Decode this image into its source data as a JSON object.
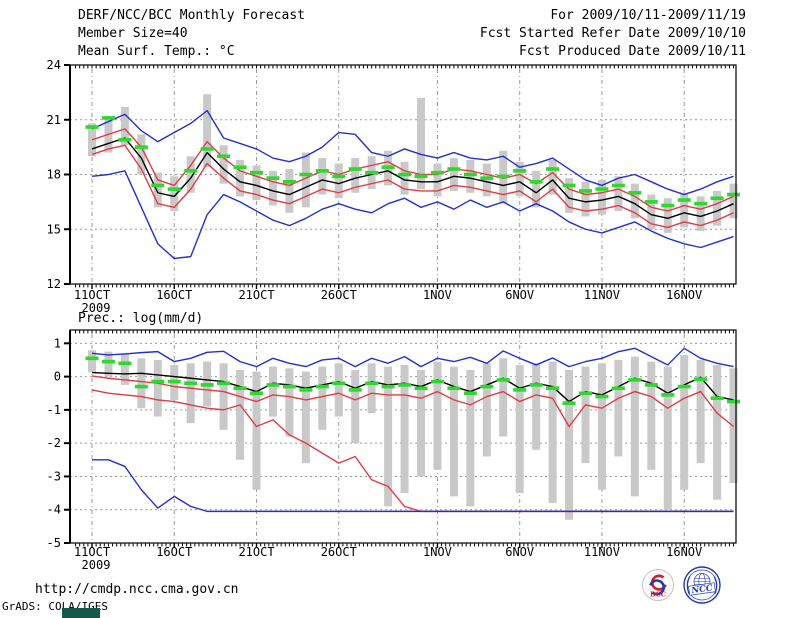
{
  "header": {
    "title": "DERF/NCC/BCC Monthly Forecast",
    "member_size": "Member Size=40",
    "for_range": "For 2009/10/11-2009/11/19",
    "fcst_started": "Fcst Started Refer Date 2009/10/10",
    "fcst_produced": "Fcst Produced Date 2009/10/11"
  },
  "footer": {
    "url": "http://cmdp.ncc.cma.gov.cn",
    "grads_credit": "GrADS: COLA/IGES",
    "logos": [
      {
        "name": "bcc-logo",
        "label": "BCC",
        "color": "#c3242c"
      },
      {
        "name": "ncc-logo",
        "label": "NCC",
        "color": "#2438b0"
      }
    ]
  },
  "colors": {
    "line_blue": "#2330cc",
    "line_red": "#e13c46",
    "line_black": "#000000",
    "green_dash": "#2ed82e",
    "spread_bar": "#c9c9c9",
    "gridline": "#9a9a9a",
    "frame": "#000000"
  },
  "chart_data": [
    {
      "type": "line",
      "title": "Mean Surf. Temp.: °C",
      "n_days": 40,
      "start_date": "11OCT2009",
      "x_tick_days": [
        0,
        5,
        10,
        15,
        21,
        26,
        31,
        36
      ],
      "x_tick_labels": [
        "11OCT",
        "16OCT",
        "21OCT",
        "26OCT",
        "1NOV",
        "6NOV",
        "11NOV",
        "16NOV"
      ],
      "x_sub_label": "2009",
      "ylim": [
        12,
        24
      ],
      "yticks": [
        24,
        21,
        18,
        15,
        12
      ],
      "ygrid": [
        21,
        18,
        15
      ],
      "series": [
        {
          "name": "upper-quartile",
          "color": "#e13c46",
          "values": [
            19.9,
            20.2,
            20.5,
            19.5,
            17.7,
            17.4,
            18.5,
            19.8,
            18.9,
            18.2,
            17.9,
            17.6,
            17.4,
            17.8,
            18.2,
            18.0,
            18.3,
            18.5,
            18.7,
            18.2,
            18.0,
            18.0,
            18.3,
            18.2,
            18.0,
            17.8,
            18.0,
            17.5,
            18.1,
            17.2,
            16.9,
            17.0,
            17.2,
            16.8,
            16.2,
            16.0,
            16.3,
            16.1,
            16.4,
            16.8
          ]
        },
        {
          "name": "lower-quartile",
          "color": "#e13c46",
          "values": [
            19.1,
            19.4,
            19.6,
            18.3,
            16.4,
            16.2,
            17.2,
            18.6,
            17.8,
            17.1,
            16.9,
            16.6,
            16.4,
            16.8,
            17.2,
            17.0,
            17.3,
            17.5,
            17.7,
            17.2,
            17.1,
            17.1,
            17.4,
            17.3,
            17.1,
            16.9,
            17.1,
            16.5,
            17.2,
            16.2,
            16.0,
            16.1,
            16.3,
            15.9,
            15.3,
            15.1,
            15.4,
            15.2,
            15.5,
            15.9
          ]
        },
        {
          "name": "ensemble-mean",
          "color": "#000000",
          "values": [
            19.4,
            19.7,
            20.0,
            18.9,
            17.0,
            16.8,
            17.8,
            19.2,
            18.3,
            17.6,
            17.4,
            17.1,
            16.9,
            17.3,
            17.7,
            17.5,
            17.8,
            18.0,
            18.2,
            17.7,
            17.6,
            17.6,
            17.9,
            17.8,
            17.6,
            17.4,
            17.6,
            17.0,
            17.7,
            16.7,
            16.5,
            16.6,
            16.8,
            16.4,
            15.8,
            15.6,
            15.9,
            15.7,
            16.0,
            16.4
          ]
        },
        {
          "name": "ensemble-max",
          "color": "#2330cc",
          "values": [
            20.5,
            20.9,
            21.3,
            20.4,
            19.8,
            20.3,
            20.8,
            21.5,
            20.0,
            19.7,
            19.4,
            18.9,
            18.7,
            19.0,
            19.5,
            20.3,
            20.2,
            19.2,
            19.0,
            19.4,
            19.1,
            18.9,
            19.2,
            18.9,
            18.8,
            19.0,
            18.4,
            18.6,
            18.9,
            18.3,
            17.7,
            17.4,
            17.8,
            18.0,
            17.6,
            17.2,
            16.9,
            17.2,
            17.6,
            17.9
          ]
        },
        {
          "name": "ensemble-min",
          "color": "#2330cc",
          "values": [
            17.9,
            18.0,
            18.2,
            16.2,
            14.2,
            13.4,
            13.5,
            15.8,
            16.9,
            16.5,
            16.0,
            15.5,
            15.2,
            15.6,
            16.1,
            16.4,
            16.1,
            15.9,
            16.4,
            16.7,
            16.2,
            16.5,
            16.1,
            16.6,
            16.2,
            16.5,
            16.0,
            16.4,
            16.0,
            15.4,
            15.0,
            14.8,
            15.1,
            15.4,
            14.9,
            14.5,
            14.2,
            14.0,
            14.3,
            14.6
          ]
        }
      ],
      "green_dashes": {
        "name": "climatology-mark",
        "color": "#2ed82e",
        "values": [
          20.6,
          21.1,
          19.9,
          19.5,
          17.4,
          17.2,
          18.2,
          19.4,
          19.0,
          18.4,
          18.1,
          17.8,
          17.6,
          18.0,
          18.2,
          17.9,
          18.3,
          18.1,
          18.4,
          18.0,
          17.9,
          18.1,
          18.3,
          18.0,
          17.8,
          17.9,
          18.2,
          17.6,
          18.3,
          17.4,
          17.1,
          17.2,
          17.4,
          17.0,
          16.5,
          16.3,
          16.6,
          16.4,
          16.7,
          16.9
        ]
      },
      "spread_bars": {
        "name": "ensemble-spread-bar",
        "color": "#c9c9c9",
        "low": [
          19.0,
          19.2,
          19.6,
          18.0,
          16.2,
          16.0,
          17.0,
          18.4,
          17.5,
          16.8,
          16.6,
          16.3,
          15.9,
          16.2,
          16.9,
          16.7,
          17.0,
          17.2,
          17.4,
          16.9,
          17.2,
          16.8,
          17.1,
          17.0,
          16.8,
          16.4,
          16.8,
          16.2,
          16.9,
          15.9,
          15.7,
          15.8,
          16.0,
          15.6,
          15.0,
          14.8,
          15.1,
          14.9,
          15.2,
          15.6
        ],
        "high": [
          20.8,
          21.0,
          21.7,
          20.2,
          18.1,
          17.9,
          19.0,
          22.4,
          19.6,
          18.8,
          18.5,
          18.2,
          18.3,
          19.2,
          18.9,
          18.6,
          18.9,
          19.0,
          19.3,
          18.7,
          22.2,
          18.6,
          18.9,
          18.8,
          18.6,
          19.3,
          18.7,
          18.2,
          18.8,
          17.8,
          17.6,
          17.7,
          17.9,
          17.5,
          16.9,
          16.7,
          17.0,
          16.8,
          17.1,
          17.5
        ]
      }
    },
    {
      "type": "line",
      "title": "Prec.: log(mm/d)",
      "n_days": 40,
      "start_date": "11OCT2009",
      "x_tick_days": [
        0,
        5,
        10,
        15,
        21,
        26,
        31,
        36
      ],
      "x_tick_labels": [
        "11OCT",
        "16OCT",
        "21OCT",
        "26OCT",
        "1NOV",
        "6NOV",
        "11NOV",
        "16NOV"
      ],
      "x_sub_label": "2009",
      "ylim": [
        -5,
        1.4
      ],
      "yticks": [
        1,
        0,
        -1,
        -2,
        -3,
        -4,
        -5
      ],
      "ygrid": [
        1,
        0,
        -1,
        -2,
        -3,
        -4
      ],
      "series": [
        {
          "name": "upper-quartile",
          "color": "#e13c46",
          "values": [
            0.02,
            -0.05,
            -0.1,
            -0.15,
            -0.2,
            -0.3,
            -0.35,
            -0.4,
            -0.45,
            -0.6,
            -0.75,
            -0.55,
            -0.6,
            -0.7,
            -0.6,
            -0.5,
            -0.7,
            -0.5,
            -0.55,
            -0.55,
            -0.65,
            -0.45,
            -0.7,
            -0.85,
            -0.6,
            -0.45,
            -0.75,
            -0.55,
            -0.65,
            -1.5,
            -0.85,
            -0.95,
            -0.65,
            -0.45,
            -0.6,
            -0.95,
            -0.65,
            -0.45,
            -1.1,
            -1.5
          ]
        },
        {
          "name": "lower-quartile",
          "color": "#e13c46",
          "values": [
            -0.4,
            -0.5,
            -0.55,
            -0.6,
            -0.7,
            -0.75,
            -0.85,
            -0.95,
            -1.0,
            -0.85,
            -1.5,
            -1.3,
            -1.75,
            -2.0,
            -2.3,
            -2.6,
            -2.4,
            -3.1,
            -3.3,
            -3.9,
            -4.05,
            -4.05,
            -4.05,
            -4.05,
            -4.05,
            -4.05,
            -4.05,
            -4.05,
            -4.05,
            -4.05,
            -4.05,
            -4.05,
            -4.05,
            -4.05,
            -4.05,
            -4.05,
            -4.05,
            -4.05,
            -4.05,
            -4.05
          ]
        },
        {
          "name": "ensemble-mean",
          "color": "#000000",
          "values": [
            0.12,
            0.1,
            0.08,
            0.1,
            0.05,
            0.0,
            -0.05,
            -0.1,
            -0.15,
            -0.3,
            -0.45,
            -0.2,
            -0.25,
            -0.35,
            -0.25,
            -0.15,
            -0.35,
            -0.15,
            -0.25,
            -0.2,
            -0.3,
            -0.1,
            -0.3,
            -0.45,
            -0.25,
            -0.05,
            -0.35,
            -0.2,
            -0.3,
            -0.75,
            -0.45,
            -0.55,
            -0.3,
            -0.05,
            -0.2,
            -0.5,
            -0.25,
            -0.02,
            -0.6,
            -0.7
          ]
        },
        {
          "name": "ensemble-max",
          "color": "#2330cc",
          "values": [
            0.7,
            0.65,
            0.68,
            0.72,
            0.75,
            0.45,
            0.55,
            0.73,
            0.76,
            0.45,
            0.3,
            0.55,
            0.4,
            0.3,
            0.5,
            0.55,
            0.3,
            0.55,
            0.4,
            0.6,
            0.3,
            0.55,
            0.45,
            0.58,
            0.4,
            0.77,
            0.55,
            0.35,
            0.56,
            0.3,
            0.45,
            0.55,
            0.75,
            0.85,
            0.6,
            0.35,
            0.85,
            0.55,
            0.4,
            0.3
          ]
        },
        {
          "name": "ensemble-min",
          "color": "#2330cc",
          "values": [
            -2.5,
            -2.5,
            -2.7,
            -3.4,
            -3.95,
            -3.6,
            -3.9,
            -4.05,
            -4.05,
            -4.05,
            -4.05,
            -4.05,
            -4.05,
            -4.05,
            -4.05,
            -4.05,
            -4.05,
            -4.05,
            -4.05,
            -4.05,
            -4.05,
            -4.05,
            -4.05,
            -4.05,
            -4.05,
            -4.05,
            -4.05,
            -4.05,
            -4.05,
            -4.05,
            -4.05,
            -4.05,
            -4.05,
            -4.05,
            -4.05,
            -4.05,
            -4.05,
            -4.05,
            -4.05,
            -4.05
          ]
        }
      ],
      "green_dashes": {
        "name": "climatology-mark",
        "color": "#2ed82e",
        "values": [
          0.55,
          0.45,
          0.4,
          -0.3,
          -0.15,
          -0.15,
          -0.2,
          -0.25,
          -0.2,
          -0.35,
          -0.5,
          -0.25,
          -0.3,
          -0.4,
          -0.3,
          -0.2,
          -0.4,
          -0.2,
          -0.3,
          -0.25,
          -0.35,
          -0.15,
          -0.35,
          -0.5,
          -0.3,
          -0.1,
          -0.4,
          -0.25,
          -0.35,
          -0.8,
          -0.5,
          -0.6,
          -0.35,
          -0.1,
          -0.25,
          -0.55,
          -0.3,
          -0.08,
          -0.65,
          -0.75
        ]
      },
      "spread_bars": {
        "name": "ensemble-spread-bar",
        "color": "#c9c9c9",
        "low": [
          0.13,
          0.0,
          -0.25,
          -0.95,
          -1.2,
          -0.7,
          -1.4,
          -0.9,
          -1.6,
          -2.5,
          -3.4,
          -1.2,
          -1.8,
          -2.6,
          -1.6,
          -1.2,
          -2.0,
          -1.1,
          -3.9,
          -3.5,
          -3.0,
          -2.8,
          -3.6,
          -3.9,
          -2.4,
          -1.8,
          -3.5,
          -2.2,
          -3.8,
          -4.3,
          -2.6,
          -3.4,
          -2.4,
          -3.6,
          -2.8,
          -4.0,
          -3.4,
          -2.6,
          -3.7,
          -3.2
        ],
        "high": [
          0.79,
          0.75,
          0.7,
          0.55,
          0.5,
          0.35,
          0.4,
          0.45,
          0.4,
          0.2,
          0.15,
          0.3,
          0.25,
          0.15,
          0.3,
          0.4,
          0.2,
          0.4,
          0.3,
          0.35,
          0.2,
          0.45,
          0.3,
          0.2,
          0.4,
          0.55,
          0.35,
          0.4,
          0.45,
          0.2,
          0.3,
          0.4,
          0.5,
          0.6,
          0.45,
          0.3,
          0.65,
          0.5,
          0.35,
          0.25
        ]
      }
    }
  ]
}
